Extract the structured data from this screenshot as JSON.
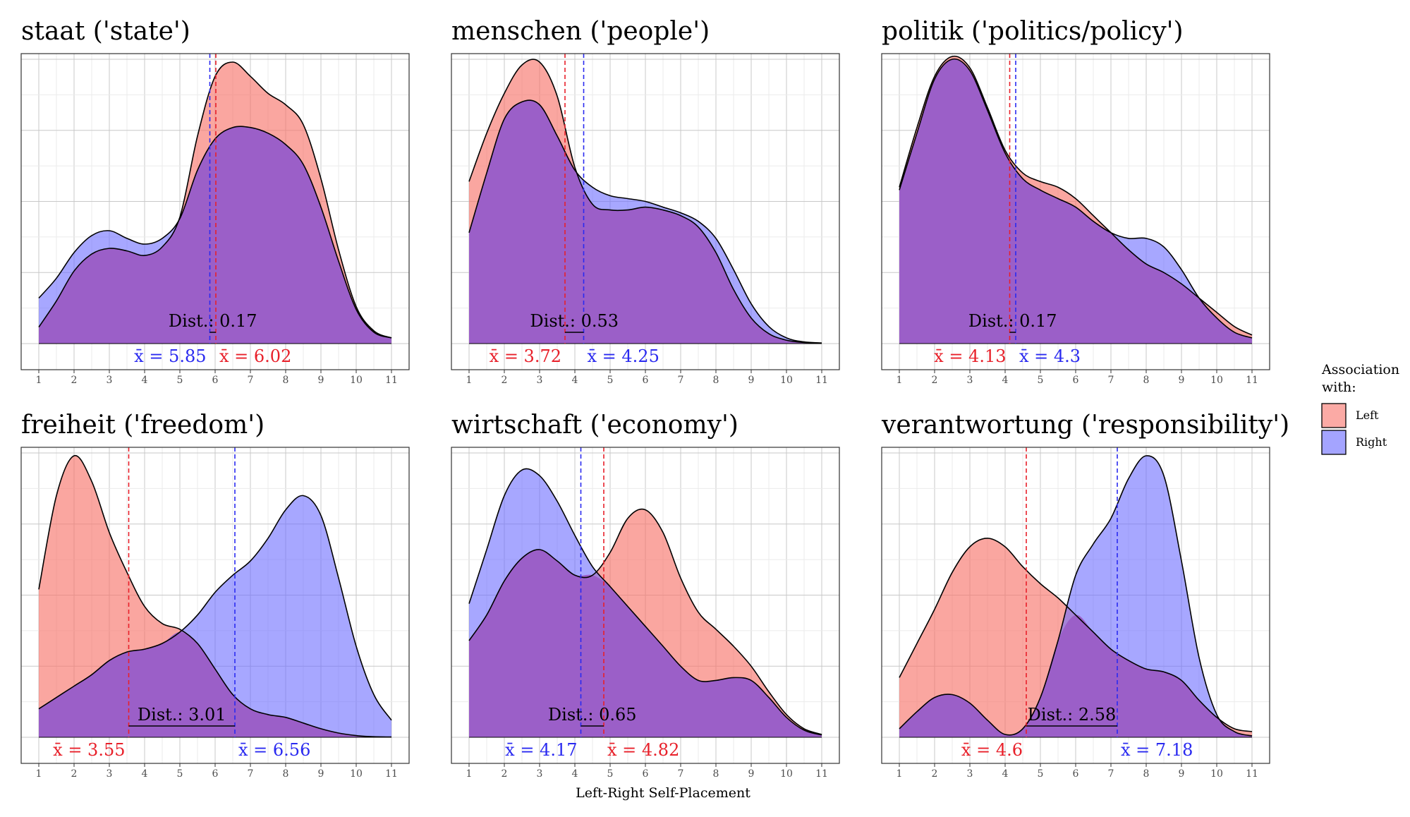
{
  "figure": {
    "xlabel": "Left-Right Self-Placement",
    "legend": {
      "title": [
        "Association",
        "with:"
      ],
      "placement": "right",
      "items": [
        {
          "name": "Left",
          "color": "#F8766D"
        },
        {
          "name": "Right",
          "color": "#6C6CFF"
        }
      ]
    },
    "overlap_color": "#9B5FC8",
    "dist_label": "Dist.:",
    "mean_prefix": "x̄ = "
  },
  "chart_data": [
    {
      "type": "area",
      "title": "staat ('state')",
      "xlim": [
        1,
        11
      ],
      "x": [
        1,
        1.5,
        2,
        2.5,
        3,
        3.5,
        4,
        4.5,
        5,
        5.5,
        6,
        6.5,
        7,
        7.5,
        8,
        8.5,
        9,
        9.5,
        10,
        10.5,
        11
      ],
      "series": [
        {
          "name": "Left",
          "values": [
            0.058,
            0.15,
            0.255,
            0.315,
            0.335,
            0.326,
            0.31,
            0.34,
            0.445,
            0.73,
            0.94,
            0.99,
            0.94,
            0.88,
            0.84,
            0.77,
            0.58,
            0.33,
            0.13,
            0.045,
            0.02
          ]
        },
        {
          "name": "Right",
          "values": [
            0.16,
            0.23,
            0.32,
            0.38,
            0.397,
            0.37,
            0.35,
            0.37,
            0.44,
            0.61,
            0.72,
            0.76,
            0.76,
            0.74,
            0.7,
            0.63,
            0.48,
            0.29,
            0.12,
            0.04,
            0.02
          ]
        }
      ],
      "means": {
        "Left": 6.02,
        "Right": 5.85
      },
      "distance": 0.17
    },
    {
      "type": "area",
      "title": "menschen ('people')",
      "xlim": [
        1,
        11
      ],
      "x": [
        1,
        1.5,
        2,
        2.5,
        3,
        3.5,
        4,
        4.5,
        5,
        5.5,
        6,
        6.5,
        7,
        7.5,
        8,
        8.5,
        9,
        9.5,
        10,
        10.5,
        11
      ],
      "series": [
        {
          "name": "Left",
          "values": [
            0.57,
            0.74,
            0.88,
            0.98,
            0.99,
            0.87,
            0.62,
            0.49,
            0.47,
            0.47,
            0.48,
            0.47,
            0.45,
            0.41,
            0.32,
            0.19,
            0.09,
            0.035,
            0.012,
            0.004,
            0.002
          ]
        },
        {
          "name": "Right",
          "values": [
            0.39,
            0.6,
            0.79,
            0.85,
            0.84,
            0.73,
            0.61,
            0.55,
            0.52,
            0.51,
            0.5,
            0.48,
            0.46,
            0.43,
            0.37,
            0.26,
            0.14,
            0.06,
            0.02,
            0.006,
            0.002
          ]
        }
      ],
      "means": {
        "Left": 3.72,
        "Right": 4.25
      },
      "distance": 0.53
    },
    {
      "type": "area",
      "title": "politik ('politics/policy')",
      "xlim": [
        1,
        11
      ],
      "x": [
        1,
        1.5,
        2,
        2.5,
        3,
        3.5,
        4,
        4.5,
        5,
        5.5,
        6,
        6.5,
        7,
        7.5,
        8,
        8.5,
        9,
        9.5,
        10,
        10.5,
        11
      ],
      "series": [
        {
          "name": "Left",
          "values": [
            0.55,
            0.76,
            0.94,
            1.01,
            0.97,
            0.83,
            0.68,
            0.6,
            0.57,
            0.55,
            0.51,
            0.45,
            0.39,
            0.33,
            0.28,
            0.25,
            0.21,
            0.16,
            0.11,
            0.06,
            0.03
          ]
        },
        {
          "name": "Right",
          "values": [
            0.54,
            0.74,
            0.93,
            1.0,
            0.96,
            0.82,
            0.67,
            0.58,
            0.54,
            0.51,
            0.48,
            0.43,
            0.39,
            0.37,
            0.37,
            0.34,
            0.26,
            0.16,
            0.09,
            0.04,
            0.02
          ]
        }
      ],
      "means": {
        "Left": 4.13,
        "Right": 4.3
      },
      "distance": 0.17
    },
    {
      "type": "area",
      "title": "freiheit ('freedom')",
      "xlim": [
        1,
        11
      ],
      "x": [
        1,
        1.5,
        2,
        2.5,
        3,
        3.5,
        4,
        4.5,
        5,
        5.5,
        6,
        6.5,
        7,
        7.5,
        8,
        8.5,
        9,
        9.5,
        10,
        10.5,
        11
      ],
      "series": [
        {
          "name": "Left",
          "values": [
            0.52,
            0.85,
            0.99,
            0.9,
            0.72,
            0.58,
            0.46,
            0.4,
            0.38,
            0.33,
            0.24,
            0.15,
            0.1,
            0.08,
            0.07,
            0.05,
            0.03,
            0.015,
            0.006,
            0.002,
            0.001
          ]
        },
        {
          "name": "Right",
          "values": [
            0.1,
            0.14,
            0.18,
            0.22,
            0.27,
            0.3,
            0.31,
            0.33,
            0.37,
            0.43,
            0.51,
            0.57,
            0.62,
            0.7,
            0.8,
            0.85,
            0.78,
            0.56,
            0.32,
            0.15,
            0.06
          ]
        }
      ],
      "means": {
        "Left": 3.55,
        "Right": 6.56
      },
      "distance": 3.01
    },
    {
      "type": "area",
      "title": "wirtschaft ('economy')",
      "xlim": [
        1,
        11
      ],
      "x": [
        1,
        1.5,
        2,
        2.5,
        3,
        3.5,
        4,
        4.5,
        5,
        5.5,
        6,
        6.5,
        7,
        7.5,
        8,
        8.5,
        9,
        9.5,
        10,
        10.5,
        11
      ],
      "series": [
        {
          "name": "Left",
          "values": [
            0.34,
            0.43,
            0.55,
            0.63,
            0.66,
            0.62,
            0.57,
            0.57,
            0.65,
            0.77,
            0.8,
            0.72,
            0.56,
            0.44,
            0.38,
            0.32,
            0.25,
            0.16,
            0.08,
            0.03,
            0.01
          ]
        },
        {
          "name": "Right",
          "values": [
            0.47,
            0.66,
            0.85,
            0.94,
            0.92,
            0.83,
            0.71,
            0.6,
            0.53,
            0.46,
            0.39,
            0.32,
            0.25,
            0.2,
            0.2,
            0.21,
            0.2,
            0.14,
            0.07,
            0.025,
            0.008
          ]
        }
      ],
      "means": {
        "Left": 4.82,
        "Right": 4.17
      },
      "distance": 0.65
    },
    {
      "type": "area",
      "title": "verantwortung ('responsibility')",
      "xlim": [
        1,
        11
      ],
      "x": [
        1,
        1.5,
        2,
        2.5,
        3,
        3.5,
        4,
        4.5,
        5,
        5.5,
        6,
        6.5,
        7,
        7.5,
        8,
        8.5,
        9,
        9.5,
        10,
        10.5,
        11
      ],
      "series": [
        {
          "name": "Left",
          "values": [
            0.21,
            0.33,
            0.45,
            0.58,
            0.67,
            0.7,
            0.67,
            0.6,
            0.54,
            0.49,
            0.43,
            0.37,
            0.31,
            0.27,
            0.24,
            0.23,
            0.2,
            0.13,
            0.07,
            0.03,
            0.02
          ]
        },
        {
          "name": "Right",
          "values": [
            0.03,
            0.09,
            0.14,
            0.15,
            0.12,
            0.06,
            0.01,
            0.03,
            0.14,
            0.34,
            0.57,
            0.68,
            0.77,
            0.91,
            0.99,
            0.92,
            0.62,
            0.28,
            0.08,
            0.02,
            0.005
          ]
        }
      ],
      "means": {
        "Left": 4.6,
        "Right": 7.18
      },
      "distance": 2.58
    }
  ]
}
